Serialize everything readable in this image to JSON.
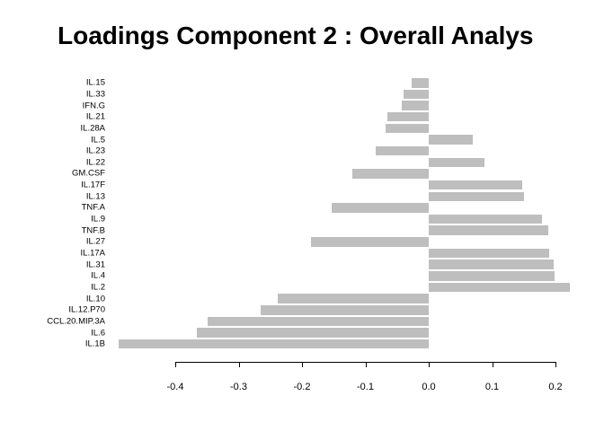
{
  "chart_data": {
    "type": "bar",
    "orientation": "horizontal",
    "title": "Loadings Component 2 : Overall Analys",
    "xlabel": "",
    "ylabel": "",
    "grid": false,
    "legend": null,
    "bar_color": "#bebebe",
    "text_color": "#000000",
    "categories": [
      "IL.15",
      "IL.33",
      "IFN.G",
      "IL.21",
      "IL.28A",
      "IL.5",
      "IL.23",
      "IL.22",
      "GM.CSF",
      "IL.17F",
      "IL.13",
      "TNF.A",
      "IL.9",
      "TNF.B",
      "IL.27",
      "IL.17A",
      "IL.31",
      "IL.4",
      "IL.2",
      "IL.10",
      "IL.12.P70",
      "CCL.20.MIP.3A",
      "IL.6",
      "IL.1B"
    ],
    "values": [
      -0.027,
      -0.04,
      -0.043,
      -0.065,
      -0.068,
      0.069,
      -0.083,
      0.088,
      -0.12,
      0.148,
      0.151,
      -0.153,
      0.179,
      0.188,
      -0.186,
      0.19,
      0.197,
      0.199,
      0.222,
      -0.238,
      -0.265,
      -0.349,
      -0.366,
      -0.49
    ],
    "x_ticks": [
      -0.4,
      -0.3,
      -0.2,
      -0.1,
      0.0,
      0.1,
      0.2
    ],
    "x_tick_labels": [
      "-0.4",
      "-0.3",
      "-0.2",
      "-0.1",
      "0.0",
      "0.1",
      "0.2"
    ],
    "xlim": [
      -0.5,
      0.23
    ]
  }
}
